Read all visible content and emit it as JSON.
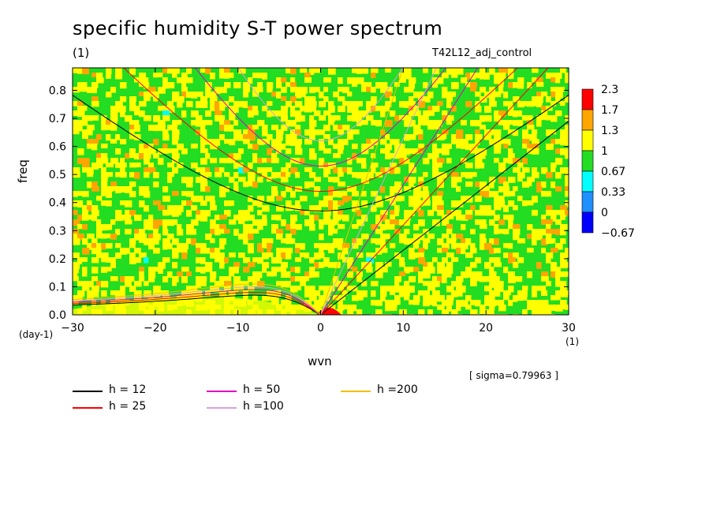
{
  "title": "specific humidity S-T power spectrum",
  "subtitle": "(1)",
  "run_label": "T42L12_adj_control",
  "sigma_note": "[ sigma=0.79963 ]",
  "x_unit": "(1)",
  "y_unit": "(day-1)",
  "chart_data": {
    "type": "heatmap",
    "title": "specific humidity S-T power spectrum",
    "xlabel": "wvn",
    "ylabel": "freq",
    "xlim": [
      -30,
      30
    ],
    "ylim": [
      0,
      0.88
    ],
    "x_ticks": [
      -30,
      -20,
      -10,
      0,
      10,
      20,
      30
    ],
    "x_tick_labels": [
      "−30",
      "−20",
      "−10",
      "0",
      "10",
      "20",
      "30"
    ],
    "y_ticks": [
      0,
      0.1,
      0.2,
      0.3,
      0.4,
      0.5,
      0.6,
      0.7,
      0.8
    ],
    "y_tick_labels": [
      "0.0",
      "0.1",
      "0.2",
      "0.3",
      "0.4",
      "0.5",
      "0.6",
      "0.7",
      "0.8"
    ],
    "colorbar": {
      "levels": [
        "2.3",
        "1.7",
        "1.3",
        "1",
        "0.67",
        "0.33",
        "0",
        "−0.67"
      ],
      "colors": [
        "#ff0000",
        "#ffa500",
        "#ffff00",
        "#22dd22",
        "#00ffff",
        "#1e90ff",
        "#0000ff"
      ]
    },
    "legend": [
      {
        "label": "h = 12",
        "color": "#000000"
      },
      {
        "label": "h = 25",
        "color": "#ff0000"
      },
      {
        "label": "h = 50",
        "color": "#e000c0"
      },
      {
        "label": "h =100",
        "color": "#dda0dd"
      },
      {
        "label": "h =200",
        "color": "#f0c000"
      }
    ],
    "curves": [
      {
        "h": 12,
        "kelvin": [
          [
            0,
            0
          ],
          [
            30,
            0.69
          ]
        ],
        "ig_min_freq": 0.37,
        "ig_at_minus30": 0.77,
        "rossby_peak": 0.07
      },
      {
        "h": 25,
        "kelvin": [
          [
            0,
            0
          ],
          [
            27.5,
            0.88
          ]
        ],
        "ig_min_freq": 0.44,
        "rossby_peak": 0.08
      },
      {
        "h": 50,
        "kelvin": [
          [
            0,
            0
          ],
          [
            19,
            0.88
          ]
        ],
        "ig_min_freq": 0.53,
        "rossby_peak": 0.09
      },
      {
        "h": 100,
        "kelvin": [
          [
            0,
            0
          ],
          [
            14,
            0.88
          ]
        ],
        "ig_min_freq": 0.62,
        "rossby_peak": 0.1
      },
      {
        "h": 200,
        "kelvin": [
          [
            0,
            0
          ],
          [
            10,
            0.88
          ]
        ],
        "ig_min_freq": 0.88,
        "rossby_peak": 0.11
      }
    ],
    "grid": false
  }
}
